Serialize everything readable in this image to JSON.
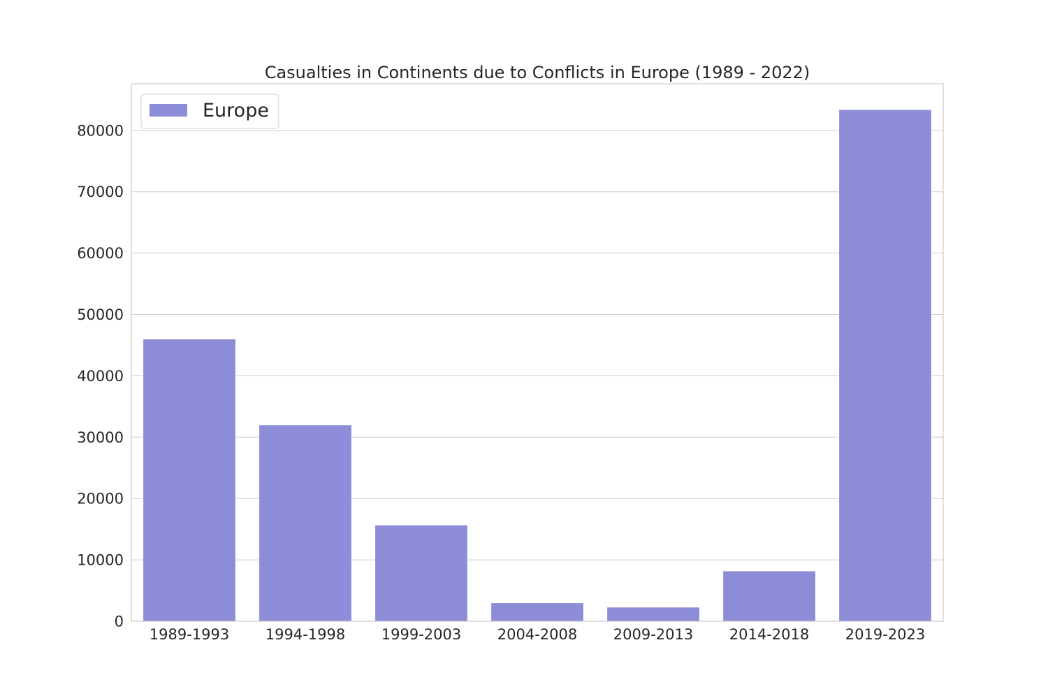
{
  "chart_data": {
    "type": "bar",
    "title": "Casualties in Continents due to Conflicts in Europe (1989 - 2022)",
    "xlabel": "",
    "ylabel": "",
    "categories": [
      "1989-1993",
      "1994-1998",
      "1999-2003",
      "2004-2008",
      "2009-2013",
      "2014-2018",
      "2019-2023"
    ],
    "series": [
      {
        "name": "Europe",
        "color": "#8c8cd9",
        "values": [
          46000,
          32000,
          15700,
          3000,
          2300,
          8200,
          83400
        ]
      }
    ],
    "ylim": [
      0,
      87600
    ],
    "yticks": [
      0,
      10000,
      20000,
      30000,
      40000,
      50000,
      60000,
      70000,
      80000
    ],
    "grid": "horizontal",
    "legend_position": "top-left"
  }
}
